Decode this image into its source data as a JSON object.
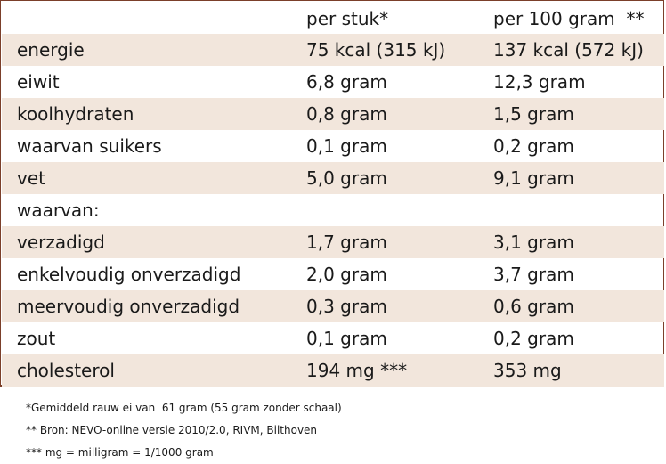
{
  "table": {
    "header": [
      "",
      "per stuk*",
      "per 100 gram  **"
    ],
    "rows": [
      {
        "nutrient": "energie",
        "per_piece": "75 kcal (315 kJ)",
        "per_100g": "137 kcal (572 kJ)"
      },
      {
        "nutrient": "eiwit",
        "per_piece": "6,8 gram",
        "per_100g": "12,3 gram"
      },
      {
        "nutrient": "koolhydraten",
        "per_piece": "0,8 gram",
        "per_100g": "1,5 gram"
      },
      {
        "nutrient": "waarvan suikers",
        "per_piece": "0,1 gram",
        "per_100g": "0,2 gram"
      },
      {
        "nutrient": "vet",
        "per_piece": "5,0 gram",
        "per_100g": "9,1 gram"
      },
      {
        "nutrient": "waarvan:",
        "per_piece": "",
        "per_100g": ""
      },
      {
        "nutrient": "verzadigd",
        "per_piece": "1,7 gram",
        "per_100g": "3,1 gram"
      },
      {
        "nutrient": "enkelvoudig onverzadigd",
        "per_piece": "2,0 gram",
        "per_100g": "3,7 gram"
      },
      {
        "nutrient": "meervoudig onverzadigd",
        "per_piece": "0,3 gram",
        "per_100g": "0,6 gram"
      },
      {
        "nutrient": "zout",
        "per_piece": "0,1 gram",
        "per_100g": "0,2 gram"
      },
      {
        "nutrient": "cholesterol",
        "per_piece": "194 mg ***",
        "per_100g": "353 mg"
      }
    ]
  },
  "footnotes": [
    "*Gemiddeld rauw ei van  61 gram (55 gram zonder schaal)",
    "** Bron: NEVO-online versie 2010/2.0, RIVM, Bilthoven",
    "*** mg = milligram = 1/1000 gram"
  ],
  "colors": {
    "row_shade": "#f2e6dc",
    "border": "#7b3f2a"
  }
}
